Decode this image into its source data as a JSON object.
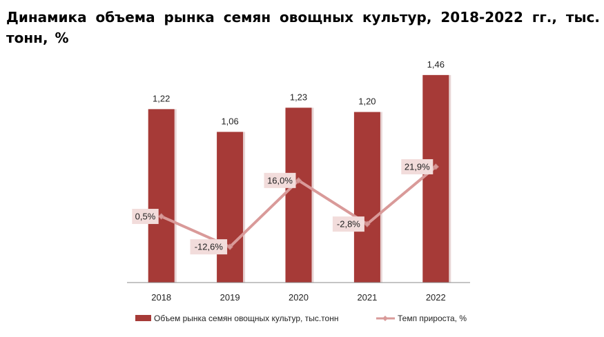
{
  "title": "Динамика объема рынка семян овощных культур, 2018-2022 гг., тыс. тонн, %",
  "colors": {
    "bar": "#a63a37",
    "bar_shadow": "#e7d4d4",
    "line": "#d99a99",
    "label_box": "#f2dcdb",
    "axis": "#888888"
  },
  "chart_data": {
    "type": "bar",
    "categories": [
      "2018",
      "2019",
      "2020",
      "2021",
      "2022"
    ],
    "series": [
      {
        "name": "Объем рынка семян овощных культур, тыс.тонн",
        "type": "bar",
        "axis": "left",
        "values": [
          1.22,
          1.06,
          1.23,
          1.2,
          1.46
        ],
        "labels": [
          "1,22",
          "1,06",
          "1,23",
          "1,20",
          "1,46"
        ]
      },
      {
        "name": "Темп прироста, %",
        "type": "line",
        "axis": "right",
        "values": [
          0.5,
          -12.6,
          16.0,
          -2.8,
          21.9
        ],
        "labels": [
          "0,5%",
          "-12,6%",
          "16,0%",
          "-2,8%",
          "21,9%"
        ]
      }
    ],
    "ylim_left": [
      0,
      1.6
    ],
    "ylim_right": [
      -28,
      70
    ],
    "grid": false,
    "legend_position": "bottom"
  }
}
